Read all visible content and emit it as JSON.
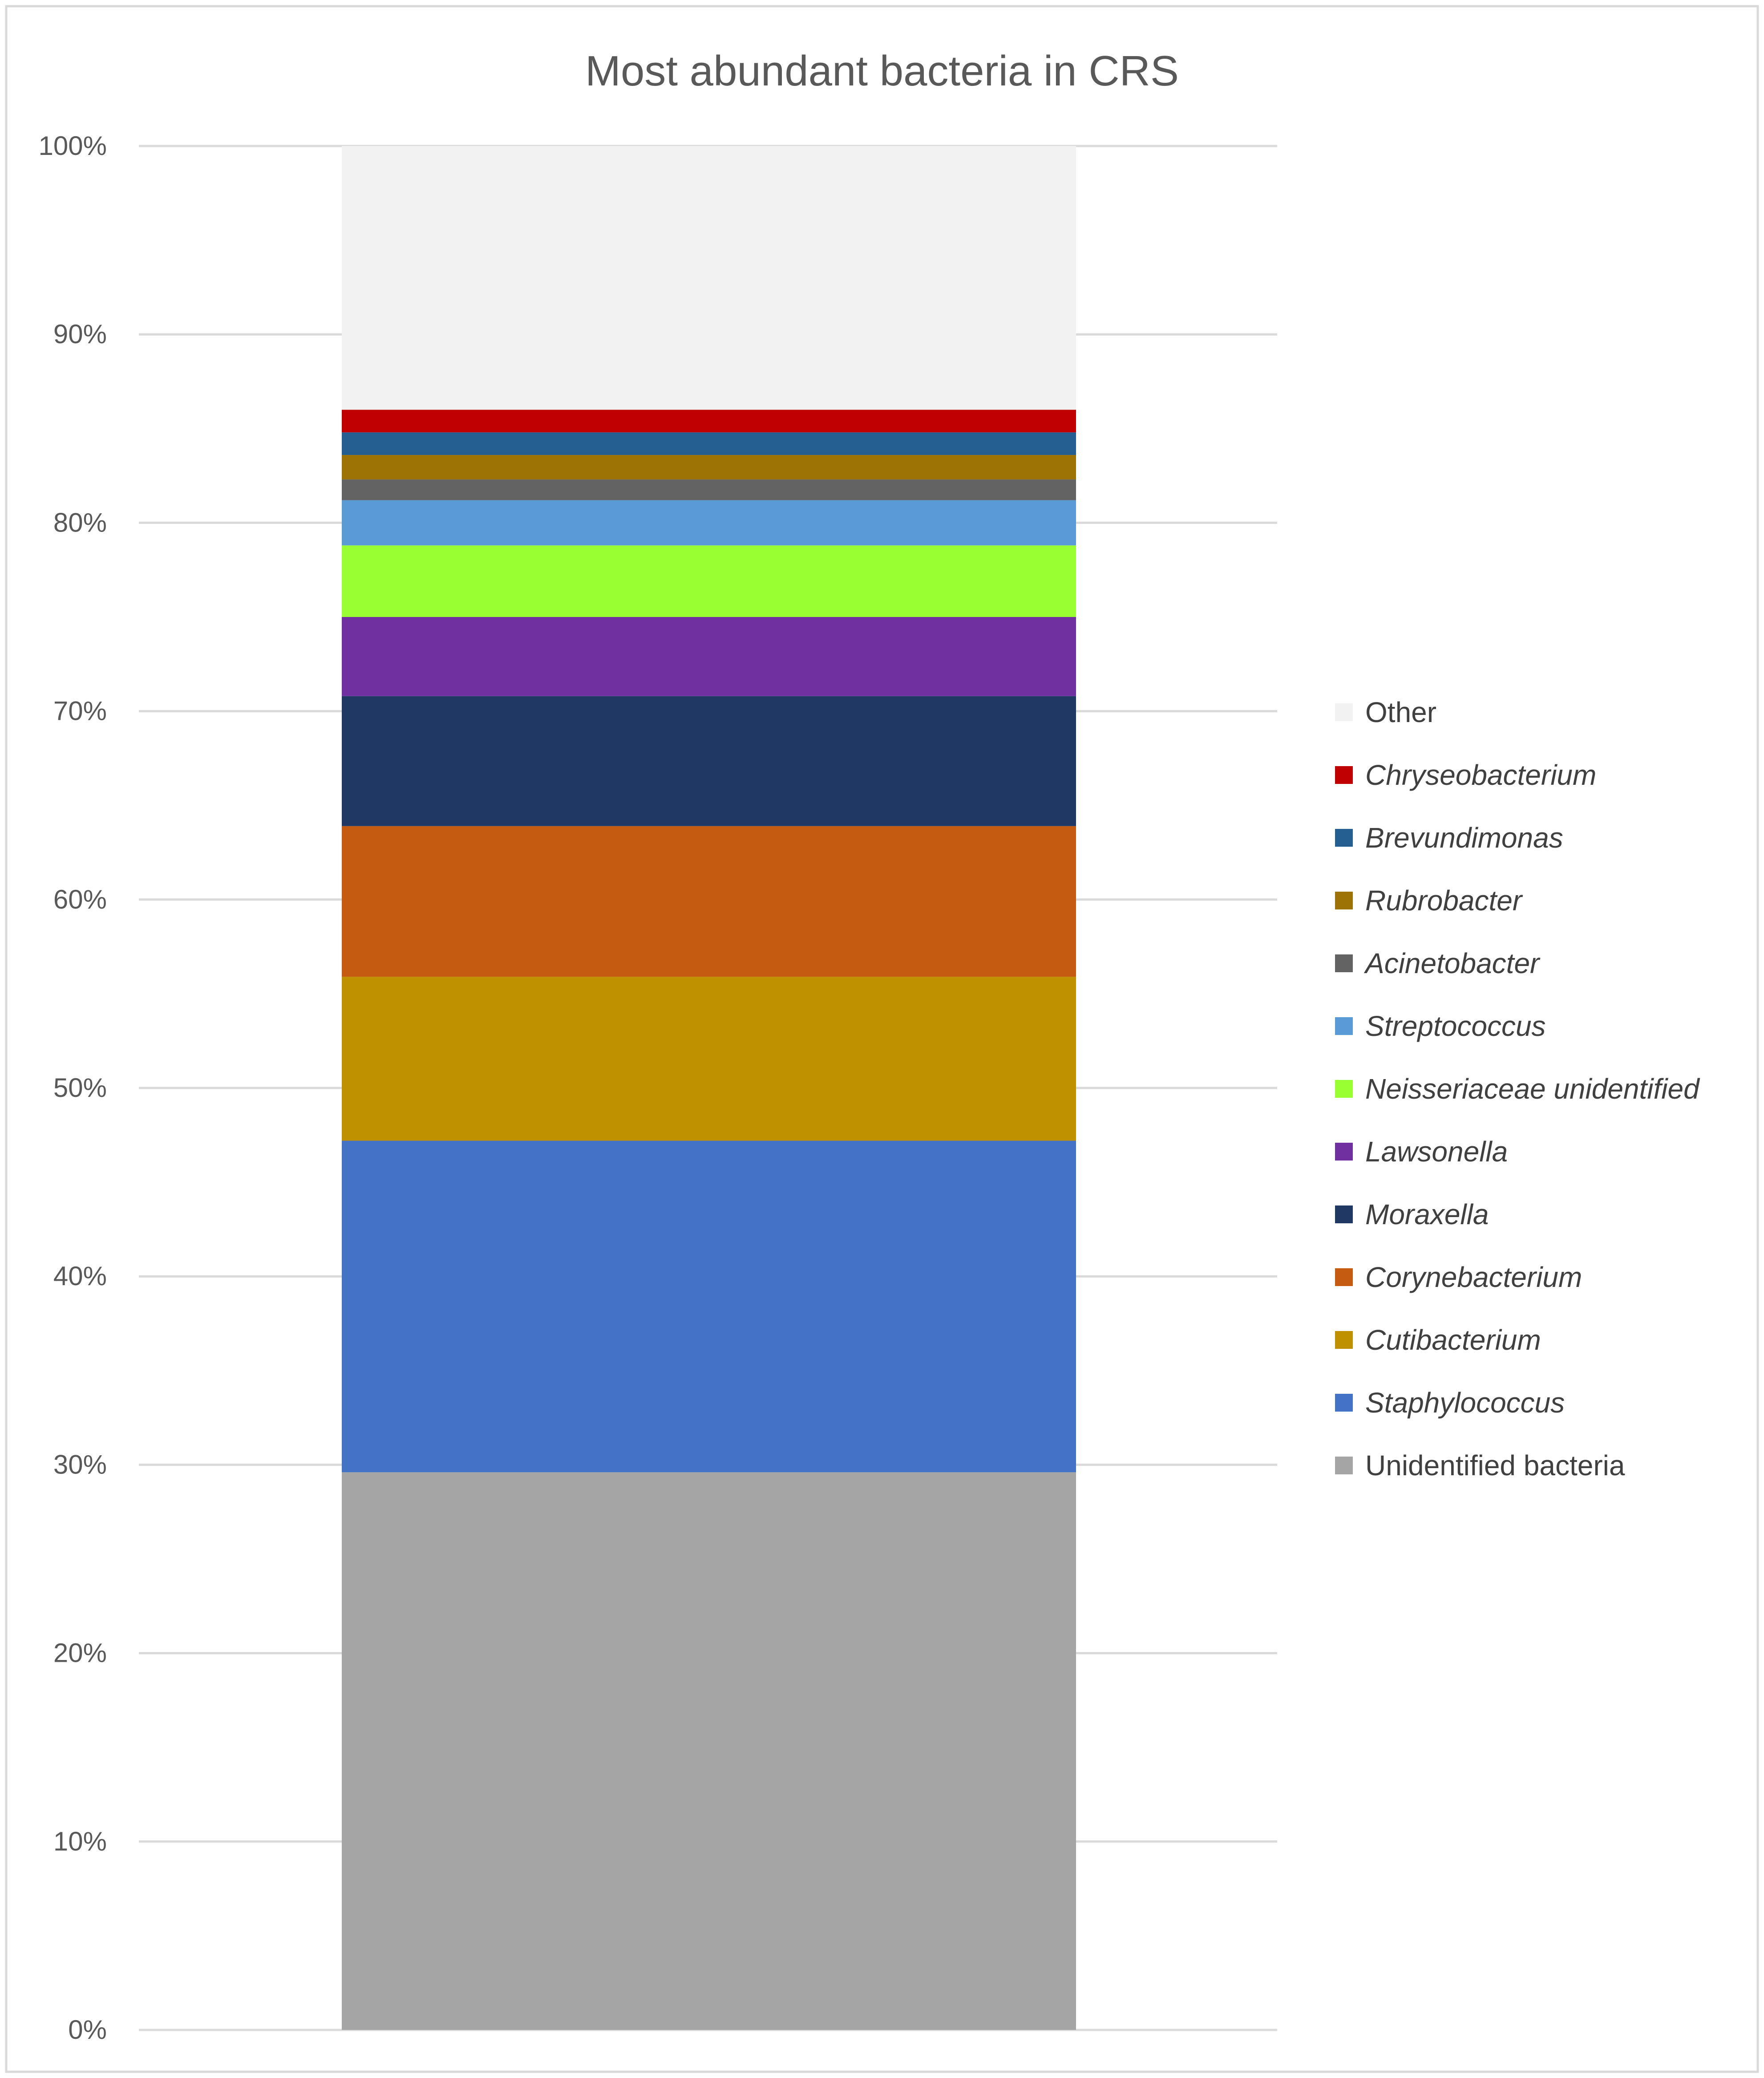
{
  "chart_data": {
    "type": "bar",
    "stacked": true,
    "percent_stacked": true,
    "title": "Most abundant bacteria in CRS",
    "xlabel": "",
    "ylabel": "",
    "ylim": [
      0,
      100
    ],
    "y_ticks": [
      "0%",
      "10%",
      "20%",
      "30%",
      "40%",
      "50%",
      "60%",
      "70%",
      "80%",
      "90%",
      "100%"
    ],
    "grid": true,
    "legend_position": "right",
    "categories": [
      ""
    ],
    "series": [
      {
        "name": "Unidentified bacteria",
        "values": [
          29.6
        ],
        "color": "#a5a5a5",
        "italic": false
      },
      {
        "name": "Staphylococcus",
        "values": [
          17.6
        ],
        "color": "#4472c4",
        "italic": true
      },
      {
        "name": "Cutibacterium",
        "values": [
          8.7
        ],
        "color": "#bf9000",
        "italic": true
      },
      {
        "name": "Corynebacterium",
        "values": [
          8.0
        ],
        "color": "#c55a11",
        "italic": true
      },
      {
        "name": "Moraxella",
        "values": [
          6.9
        ],
        "color": "#203864",
        "italic": true
      },
      {
        "name": "Lawsonella",
        "values": [
          4.2
        ],
        "color": "#7030a0",
        "italic": true
      },
      {
        "name": "Neisseriaceae unidentified",
        "values": [
          3.8
        ],
        "color": "#99ff33",
        "italic": true
      },
      {
        "name": "Streptococcus",
        "values": [
          2.4
        ],
        "color": "#5b9bd5",
        "italic": true
      },
      {
        "name": "Acinetobacter",
        "values": [
          1.1
        ],
        "color": "#636363",
        "italic": true
      },
      {
        "name": "Rubrobacter",
        "values": [
          1.3
        ],
        "color": "#9e7305",
        "italic": true
      },
      {
        "name": "Brevundimonas",
        "values": [
          1.2
        ],
        "color": "#255e91",
        "italic": true
      },
      {
        "name": "Chryseobacterium",
        "values": [
          1.2
        ],
        "color": "#c00000",
        "italic": true
      },
      {
        "name": "Other",
        "values": [
          14.0
        ],
        "color": "#f2f2f2",
        "italic": false
      }
    ],
    "gridline_color": "#d9d9d9",
    "border_color": "#d9d9d9"
  }
}
